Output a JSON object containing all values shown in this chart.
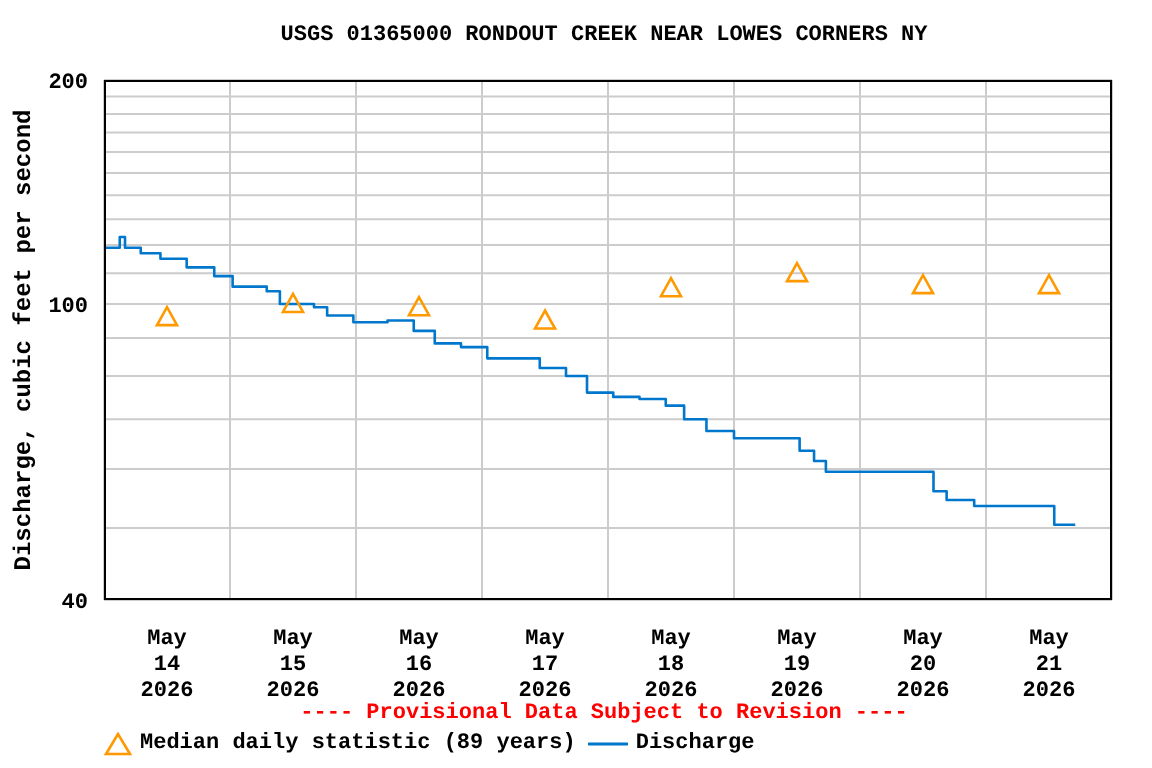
{
  "chart_data": {
    "type": "step",
    "title": "USGS 01365000 RONDOUT CREEK NEAR LOWES CORNERS NY",
    "ylabel": "Discharge, cubic feet per second",
    "annotations": [
      "---- Provisional Data Subject to Revision ----"
    ],
    "log": true,
    "grid": true,
    "legend": "bottom",
    "xlim": [
      "2026-05-14T00:00",
      "2026-05-22T00:00"
    ],
    "xticks": [
      {
        "value": "2026-05-14T00:00",
        "label": null
      },
      {
        "value": "2026-05-15T00:00",
        "label": null
      },
      {
        "value": "2026-05-16T00:00",
        "label": null
      },
      {
        "value": "2026-05-17T00:00",
        "label": null
      },
      {
        "value": "2026-05-18T00:00",
        "label": null
      },
      {
        "value": "2026-05-19T00:00",
        "label": null
      },
      {
        "value": "2026-05-20T00:00",
        "label": null
      },
      {
        "value": "2026-05-21T00:00",
        "label": null
      },
      {
        "value": "2026-05-22T00:00",
        "label": null
      },
      {
        "value": "2026-05-14T12:00",
        "label": "May\n14\n2026"
      },
      {
        "value": "2026-05-15T12:00",
        "label": "May\n15\n2026"
      },
      {
        "value": "2026-05-16T12:00",
        "label": "May\n16\n2026"
      },
      {
        "value": "2026-05-17T12:00",
        "label": "May\n17\n2026"
      },
      {
        "value": "2026-05-18T12:00",
        "label": "May\n18\n2026"
      },
      {
        "value": "2026-05-19T12:00",
        "label": "May\n19\n2026"
      },
      {
        "value": "2026-05-20T12:00",
        "label": "May\n20\n2026"
      },
      {
        "value": "2026-05-21T12:00",
        "label": "May\n21\n2026"
      }
    ],
    "ylim": [
      40,
      200
    ],
    "yticks": [
      40,
      {
        "value": 50,
        "label": null
      },
      {
        "value": 60,
        "label": null
      },
      {
        "value": 70,
        "label": null
      },
      {
        "value": 80,
        "label": null
      },
      {
        "value": 90,
        "label": null
      },
      100,
      {
        "value": 110,
        "label": null
      },
      {
        "value": 120,
        "label": null
      },
      {
        "value": 130,
        "label": null
      },
      {
        "value": 140,
        "label": null
      },
      {
        "value": 150,
        "label": null
      },
      {
        "value": 160,
        "label": null
      },
      {
        "value": 170,
        "label": null
      },
      {
        "value": 180,
        "label": null
      },
      {
        "value": 190,
        "label": null
      },
      200
    ],
    "series": [
      {
        "name": "Median daily statistic (89 years)",
        "type": "scatter",
        "marker": "triangle",
        "color": "#ff9900",
        "x": [
          "2026-05-14T12:00",
          "2026-05-15T12:00",
          "2026-05-16T12:00",
          "2026-05-17T12:00",
          "2026-05-18T12:00",
          "2026-05-19T12:00",
          "2026-05-20T12:00",
          "2026-05-21T12:00"
        ],
        "values": [
          96,
          100,
          99,
          95,
          105,
          110,
          106,
          106
        ]
      },
      {
        "name": "Discharge",
        "marker": "none",
        "color": "#0077cc",
        "x": [
          "2026-05-14T00:00",
          "2026-05-14T03:00",
          "2026-05-14T04:00",
          "2026-05-14T07:00",
          "2026-05-14T10:45",
          "2026-05-14T15:45",
          "2026-05-14T21:00",
          "2026-05-15T00:30",
          "2026-05-15T07:00",
          "2026-05-15T09:30",
          "2026-05-15T16:00",
          "2026-05-15T18:30",
          "2026-05-15T23:30",
          "2026-05-16T06:00",
          "2026-05-16T11:00",
          "2026-05-16T15:00",
          "2026-05-16T20:00",
          "2026-05-17T01:00",
          "2026-05-17T06:00",
          "2026-05-17T11:00",
          "2026-05-17T16:00",
          "2026-05-17T20:00",
          "2026-05-18T01:00",
          "2026-05-18T06:00",
          "2026-05-18T11:00",
          "2026-05-18T14:30",
          "2026-05-18T18:45",
          "2026-05-19T00:00",
          "2026-05-19T10:00",
          "2026-05-19T12:30",
          "2026-05-19T15:15",
          "2026-05-19T17:30",
          "2026-05-20T07:30",
          "2026-05-20T14:00",
          "2026-05-20T16:30",
          "2026-05-20T21:45",
          "2026-05-21T12:30",
          "2026-05-21T13:00",
          "2026-05-21T17:00"
        ],
        "values": [
          119,
          123,
          119,
          117,
          115,
          112,
          109,
          105.5,
          104,
          100,
          99,
          96.5,
          94.5,
          95,
          92,
          88.5,
          87.5,
          84.5,
          84.5,
          82,
          80,
          76,
          75,
          74.5,
          73,
          70,
          67.5,
          66,
          66,
          63.5,
          61.5,
          59.5,
          59.5,
          56,
          54.5,
          53.5,
          53.5,
          50.5,
          50.5
        ]
      }
    ]
  }
}
